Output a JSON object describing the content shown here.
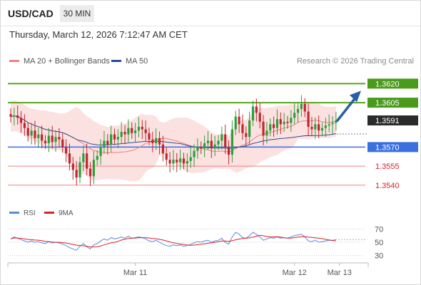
{
  "header": {
    "symbol": "USD/CAD",
    "timeframe": "30 MIN",
    "datetime": "Thursday, March 12, 2026 7:12:47 AM CET"
  },
  "legend": {
    "ma20_label": "MA 20 + Bollinger Bands",
    "ma20_color": "#f08080",
    "ma50_label": "MA 50",
    "ma50_color": "#2a4d8f",
    "copyright": "Research © 2026 Trading Central"
  },
  "colors": {
    "bullish": "#2e9e3a",
    "bearish": "#c0262e",
    "resistance": "#5aa51c",
    "pivot": "#3b6fe0",
    "support": "#f08080",
    "bollinger_fill": "#fbdcdc",
    "arrow": "#2b5ea8",
    "rsi": "#5b8ad6",
    "rsi_ma": "#d9202a"
  },
  "chart_data": [
    {
      "type": "candlestick",
      "name": "price",
      "y_range": [
        1.3527,
        1.3632
      ],
      "levels": [
        {
          "value": 1.362,
          "label": "1.3620",
          "kind": "resistance"
        },
        {
          "value": 1.3605,
          "label": "1.3605",
          "kind": "resistance"
        },
        {
          "value": 1.3591,
          "label": "1.3591",
          "kind": "current"
        },
        {
          "value": 1.357,
          "label": "1.3570",
          "kind": "pivot"
        },
        {
          "value": 1.3555,
          "label": "1.3555",
          "kind": "support"
        },
        {
          "value": 1.354,
          "label": "1.3540",
          "kind": "support"
        }
      ],
      "forecast": {
        "from": 1.3591,
        "to": 1.362
      },
      "x_ticks": [
        {
          "label": "Mar 11",
          "index": 36
        },
        {
          "label": "Mar 12",
          "index": 82
        },
        {
          "label": "Mar 13",
          "index": 95
        }
      ],
      "closes": [
        1.3594,
        1.3595,
        1.3593,
        1.3589,
        1.3585,
        1.3579,
        1.3583,
        1.3577,
        1.358,
        1.3575,
        1.3573,
        1.3579,
        1.3574,
        1.3578,
        1.3576,
        1.357,
        1.3565,
        1.3557,
        1.3552,
        1.3546,
        1.3558,
        1.3565,
        1.3553,
        1.3547,
        1.356,
        1.3563,
        1.357,
        1.3575,
        1.3572,
        1.358,
        1.3576,
        1.3578,
        1.3582,
        1.358,
        1.3585,
        1.3581,
        1.3583,
        1.3586,
        1.3584,
        1.3581,
        1.3576,
        1.3573,
        1.3577,
        1.3572,
        1.3565,
        1.356,
        1.3557,
        1.356,
        1.3558,
        1.3561,
        1.3557,
        1.3559,
        1.3562,
        1.3567,
        1.357,
        1.3569,
        1.3573,
        1.3575,
        1.3569,
        1.3572,
        1.3575,
        1.358,
        1.357,
        1.3564,
        1.3584,
        1.3594,
        1.3588,
        1.3581,
        1.3578,
        1.3591,
        1.3602,
        1.3597,
        1.359,
        1.3579,
        1.3583,
        1.3588,
        1.3585,
        1.3592,
        1.3588,
        1.359,
        1.3589,
        1.3593,
        1.3597,
        1.36,
        1.3604,
        1.3598,
        1.3586,
        1.3584,
        1.3588,
        1.3583,
        1.3585,
        1.3587,
        1.3588,
        1.3589,
        1.3591
      ]
    },
    {
      "type": "line",
      "name": "oscillator",
      "y_range": [
        20,
        80
      ],
      "ticks": [
        70,
        50,
        30
      ],
      "series": [
        {
          "name": "RSI",
          "color": "#5b8ad6"
        },
        {
          "name": "9MA",
          "color": "#d9202a"
        }
      ],
      "rsi": [
        55,
        58,
        56,
        54,
        52,
        50,
        52,
        50,
        51,
        49,
        48,
        51,
        49,
        50,
        49,
        47,
        45,
        42,
        40,
        38,
        44,
        48,
        43,
        40,
        46,
        48,
        52,
        55,
        53,
        57,
        55,
        56,
        58,
        56,
        59,
        56,
        57,
        58,
        57,
        55,
        52,
        51,
        53,
        50,
        47,
        45,
        44,
        46,
        45,
        46,
        44,
        45,
        47,
        49,
        51,
        50,
        52,
        53,
        50,
        52,
        53,
        56,
        50,
        47,
        58,
        65,
        62,
        57,
        56,
        60,
        65,
        62,
        58,
        53,
        55,
        57,
        56,
        58,
        56,
        57,
        56,
        58,
        60,
        61,
        62,
        58,
        52,
        51,
        53,
        50,
        51,
        52,
        53,
        53,
        54
      ]
    }
  ]
}
